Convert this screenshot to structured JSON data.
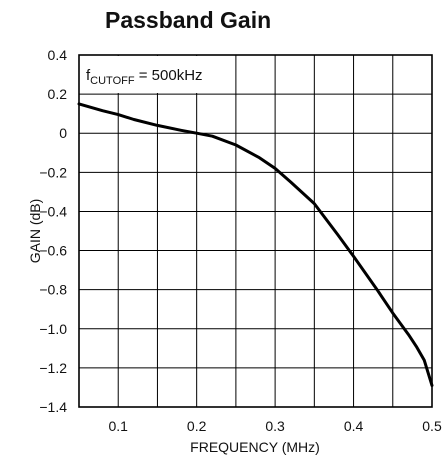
{
  "chart_data": {
    "type": "line",
    "title": "Passband Gain",
    "xlabel": "FREQUENCY (MHz)",
    "ylabel": "GAIN (dB)",
    "xlim": [
      0.05,
      0.5
    ],
    "ylim": [
      -1.4,
      0.4
    ],
    "grid": true,
    "x_ticks": [
      0.1,
      0.2,
      0.3,
      0.4,
      0.5
    ],
    "x_tick_labels": [
      "0.1",
      "0.2",
      "0.3",
      "0.4",
      "0.5"
    ],
    "x_gridlines": [
      0.05,
      0.1,
      0.15,
      0.2,
      0.25,
      0.3,
      0.35,
      0.4,
      0.45,
      0.5
    ],
    "y_ticks": [
      0.4,
      0.2,
      0,
      -0.2,
      -0.4,
      -0.6,
      -0.8,
      -1.0,
      -1.2,
      -1.4
    ],
    "y_tick_labels": [
      "0.4",
      "0.2",
      "0",
      "−0.2",
      "−0.4",
      "−0.6",
      "−0.8",
      "−1.0",
      "−1.2",
      "−1.4"
    ],
    "annotation": {
      "main": "f",
      "sub": "CUTOFF",
      "rest": " = 500kHz"
    },
    "series": [
      {
        "color": "#000000",
        "x": [
          0.05,
          0.08,
          0.1,
          0.12,
          0.15,
          0.18,
          0.2,
          0.22,
          0.25,
          0.28,
          0.3,
          0.32,
          0.35,
          0.38,
          0.4,
          0.43,
          0.45,
          0.47,
          0.48,
          0.49,
          0.5
        ],
        "y": [
          0.15,
          0.115,
          0.095,
          0.07,
          0.04,
          0.015,
          0.0,
          -0.015,
          -0.06,
          -0.125,
          -0.18,
          -0.25,
          -0.36,
          -0.52,
          -0.63,
          -0.8,
          -0.92,
          -1.03,
          -1.09,
          -1.16,
          -1.29
        ]
      }
    ]
  }
}
